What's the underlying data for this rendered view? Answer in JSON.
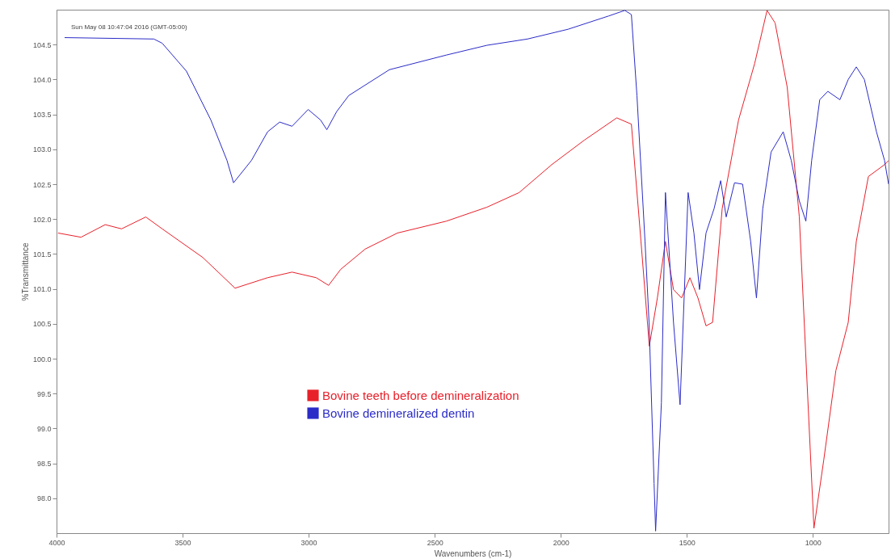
{
  "chart_data": {
    "type": "line",
    "xlabel": "Wavenumbers (cm-1)",
    "ylabel": "%Transmittance",
    "xlim": [
      4000,
      700
    ],
    "ylim": [
      97.5,
      105
    ],
    "xticks": [
      4000,
      3500,
      3000,
      2500,
      2000,
      1500,
      1000
    ],
    "yticks": [
      {
        "value": 98,
        "label": "98.0"
      },
      98.5,
      {
        "value": 99,
        "label": "99.0"
      },
      99.5,
      {
        "value": 100,
        "label": "100.0"
      },
      100.5,
      {
        "value": 101,
        "label": "101.0"
      },
      101.5,
      {
        "value": 102,
        "label": "102.0"
      },
      102.5,
      {
        "value": 103,
        "label": "103.0"
      },
      103.5,
      {
        "value": 104,
        "label": "104.0"
      },
      104.5
    ],
    "grid": false,
    "legend": "bottom",
    "marker": "none",
    "line_style": "solid",
    "annotations": [
      "Sun May 08 10:47:04 2016 (GMT-05:00)"
    ],
    "series": [
      {
        "name": "Bovine teeth before demineralization",
        "color": "#e8202a",
        "x": [
          3994,
          3903,
          3807,
          3742,
          3646,
          3581,
          3420,
          3292,
          3163,
          3066,
          2970,
          2921,
          2873,
          2776,
          2648,
          2454,
          2293,
          2165,
          2036,
          1907,
          1778,
          1720,
          1682,
          1649,
          1617,
          1585,
          1553,
          1521,
          1488,
          1456,
          1424,
          1398,
          1360,
          1295,
          1231,
          1182,
          1150,
          1102,
          1054,
          1021,
          996,
          957,
          909,
          860,
          828,
          780,
          716,
          700
        ],
        "values": [
          101.8,
          101.74,
          101.92,
          101.86,
          102.03,
          101.86,
          101.45,
          101.01,
          101.16,
          101.24,
          101.16,
          101.05,
          101.28,
          101.57,
          101.8,
          101.97,
          102.17,
          102.38,
          102.78,
          103.13,
          103.45,
          103.36,
          101.68,
          100.18,
          100.87,
          101.68,
          100.99,
          100.87,
          101.16,
          100.87,
          100.47,
          100.52,
          102.15,
          103.42,
          104.23,
          104.99,
          104.81,
          103.89,
          102.03,
          99.48,
          97.57,
          98.55,
          99.83,
          100.52,
          101.68,
          102.61,
          102.78,
          102.84
        ]
      },
      {
        "name": "Bovine demineralized dentin",
        "color": "#2b2bc8",
        "x": [
          3968,
          3614,
          3581,
          3485,
          3388,
          3324,
          3298,
          3227,
          3163,
          3115,
          3066,
          3002,
          2953,
          2928,
          2889,
          2841,
          2680,
          2454,
          2293,
          2132,
          1971,
          1810,
          1746,
          1720,
          1698,
          1666,
          1650,
          1630,
          1624,
          1601,
          1585,
          1553,
          1527,
          1495,
          1472,
          1450,
          1424,
          1392,
          1366,
          1344,
          1311,
          1279,
          1247,
          1224,
          1199,
          1166,
          1118,
          1086,
          1054,
          1028,
          1005,
          973,
          941,
          893,
          860,
          828,
          796,
          748,
          716,
          700
        ],
        "values": [
          104.6,
          104.58,
          104.52,
          104.12,
          103.42,
          102.84,
          102.52,
          102.84,
          103.25,
          103.39,
          103.33,
          103.57,
          103.42,
          103.28,
          103.54,
          103.77,
          104.14,
          104.35,
          104.49,
          104.58,
          104.72,
          104.91,
          104.99,
          104.93,
          103.77,
          101.68,
          100.52,
          98.21,
          97.53,
          99.37,
          102.38,
          100.52,
          99.34,
          102.38,
          101.8,
          100.99,
          101.8,
          102.15,
          102.55,
          102.03,
          102.52,
          102.5,
          101.68,
          100.87,
          102.15,
          102.96,
          103.25,
          102.84,
          102.26,
          101.97,
          102.84,
          103.71,
          103.83,
          103.71,
          104.0,
          104.18,
          104.0,
          103.25,
          102.84,
          102.5
        ]
      }
    ]
  }
}
